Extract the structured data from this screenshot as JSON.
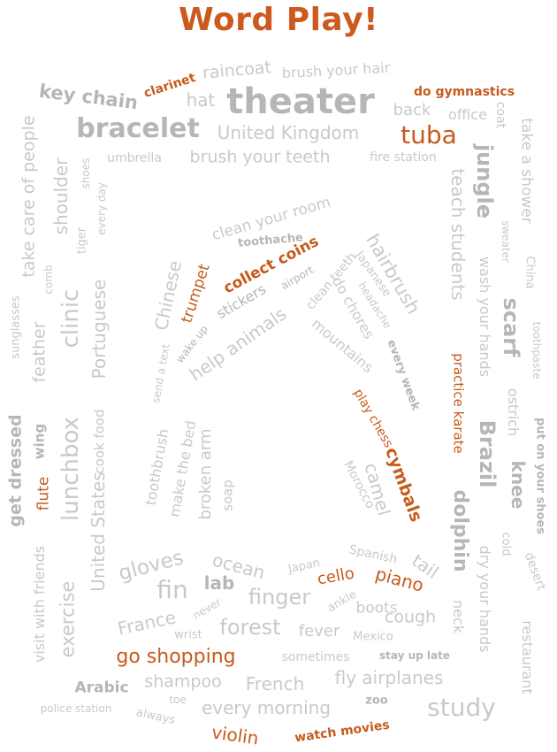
{
  "title": "Word Play!",
  "colors": {
    "gray": "#c9c9c9",
    "dark_gray": "#b6b6b6",
    "orange": "#c75a1c",
    "title": "#cc5a1f"
  },
  "words": [
    "raincoat",
    "brush your hair",
    "clarinet",
    "key chain",
    "hat",
    "theater",
    "do gymnastics",
    "back",
    "office",
    "coat",
    "bracelet",
    "United Kingdom",
    "tuba",
    "take a shower",
    "take care of people",
    "shoulder",
    "shoes",
    "every day",
    "umbrella",
    "brush your teeth",
    "fire station",
    "jungle",
    "teach students",
    "sweater",
    "China",
    "clean your room",
    "toothache",
    "collect coins",
    "hairbrush",
    "trumpet",
    "airport",
    "Japanese",
    "Chinese",
    "stickers",
    "clean teeth",
    "headache",
    "comb",
    "clinic",
    "Portuguese",
    "wake up",
    "help animals",
    "do chores",
    "mountains",
    "wash your hands",
    "scarf",
    "toothpaste",
    "sunglasses",
    "feather",
    "send a text",
    "every week",
    "practice karate",
    "ostrich",
    "play chess",
    "get dressed",
    "wing",
    "lunchbox",
    "cook food",
    "toothbrush",
    "make the bed",
    "broken arm",
    "Brazil",
    "put on your shoes",
    "knee",
    "flute",
    "soap",
    "Morocco",
    "cymbals",
    "camel",
    "dolphin",
    "United States",
    "gloves",
    "ocean",
    "Japan",
    "Spanish",
    "tail",
    "dry your hands",
    "cold",
    "desert",
    "visit with friends",
    "exercise",
    "fin",
    "lab",
    "cello",
    "piano",
    "finger",
    "ankle",
    "France",
    "never",
    "boots",
    "forest",
    "wrist",
    "fever",
    "cough",
    "neck",
    "Mexico",
    "restaurant",
    "go shopping",
    "sometimes",
    "stay up late",
    "Arabic",
    "shampoo",
    "French",
    "fly airplanes",
    "toe",
    "police station",
    "always",
    "every morning",
    "zoo",
    "study",
    "violin",
    "watch movies",
    "tiger"
  ]
}
